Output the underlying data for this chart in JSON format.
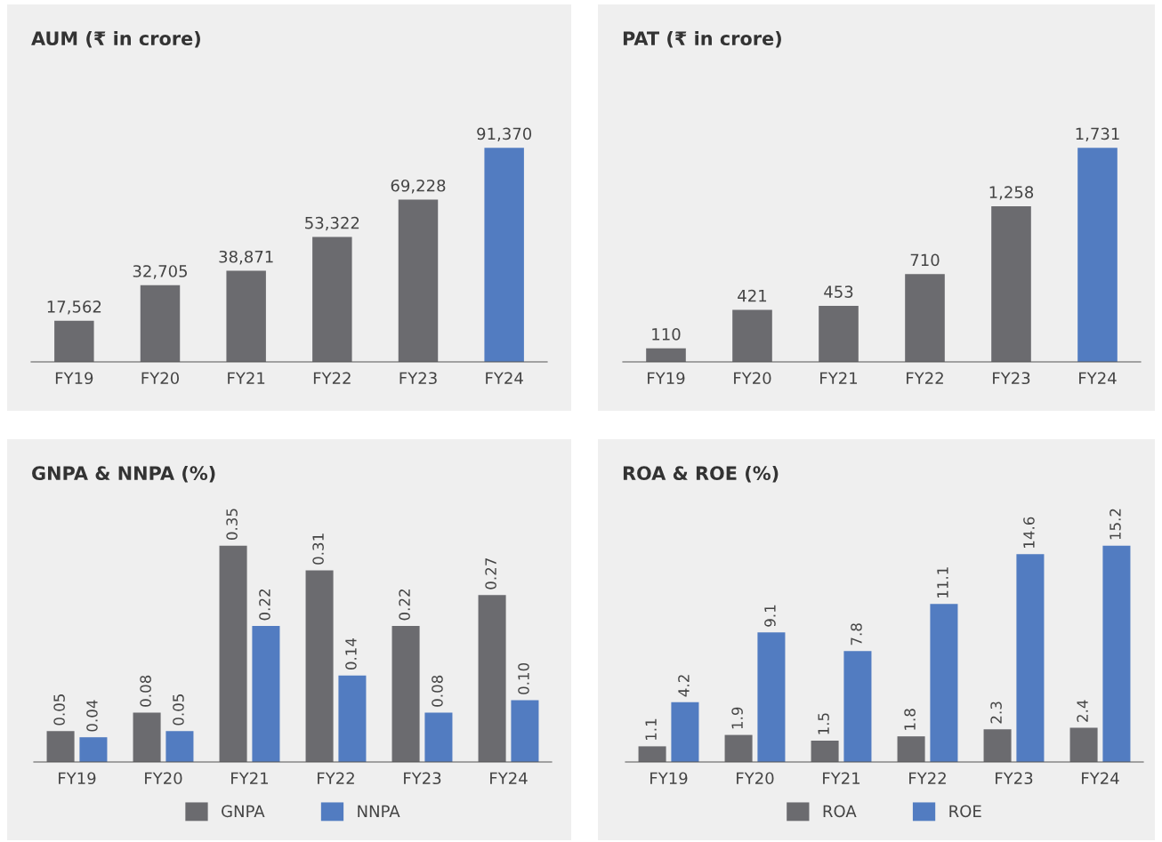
{
  "chart_data": [
    {
      "type": "bar",
      "title": "AUM (₹ in crore)",
      "categories": [
        "FY19",
        "FY20",
        "FY21",
        "FY22",
        "FY23",
        "FY24"
      ],
      "values": [
        17562,
        32705,
        38871,
        53322,
        69228,
        91370
      ],
      "value_labels": [
        "17,562",
        "32,705",
        "38,871",
        "53,322",
        "69,228",
        "91,370"
      ],
      "colors": [
        "#6b6b6f",
        "#6b6b6f",
        "#6b6b6f",
        "#6b6b6f",
        "#6b6b6f",
        "#527cc1"
      ],
      "tick_labels": "x",
      "legend": false
    },
    {
      "type": "bar",
      "title": "PAT (₹ in crore)",
      "categories": [
        "FY19",
        "FY20",
        "FY21",
        "FY22",
        "FY23",
        "FY24"
      ],
      "values": [
        110,
        421,
        453,
        710,
        1258,
        1731
      ],
      "value_labels": [
        "110",
        "421",
        "453",
        "710",
        "1,258",
        "1,731"
      ],
      "colors": [
        "#6b6b6f",
        "#6b6b6f",
        "#6b6b6f",
        "#6b6b6f",
        "#6b6b6f",
        "#527cc1"
      ],
      "tick_labels": "x",
      "legend": false
    },
    {
      "type": "bar",
      "title": "GNPA & NNPA (%)",
      "categories": [
        "FY19",
        "FY20",
        "FY21",
        "FY22",
        "FY23",
        "FY24"
      ],
      "series": [
        {
          "name": "GNPA",
          "color": "#6b6b6f",
          "values": [
            0.05,
            0.08,
            0.35,
            0.31,
            0.22,
            0.27
          ],
          "value_labels": [
            "0.05",
            "0.08",
            "0.35",
            "0.31",
            "0.22",
            "0.27"
          ]
        },
        {
          "name": "NNPA",
          "color": "#527cc1",
          "values": [
            0.04,
            0.05,
            0.22,
            0.14,
            0.08,
            0.1
          ],
          "value_labels": [
            "0.04",
            "0.05",
            "0.22",
            "0.14",
            "0.08",
            "0.10"
          ]
        }
      ],
      "tick_labels": "x",
      "legend": "bottom"
    },
    {
      "type": "bar",
      "title": "ROA & ROE (%)",
      "categories": [
        "FY19",
        "FY20",
        "FY21",
        "FY22",
        "FY23",
        "FY24"
      ],
      "series": [
        {
          "name": "ROA",
          "color": "#6b6b6f",
          "values": [
            1.1,
            1.9,
            1.5,
            1.8,
            2.3,
            2.4
          ],
          "value_labels": [
            "1.1",
            "1.9",
            "1.5",
            "1.8",
            "2.3",
            "2.4"
          ]
        },
        {
          "name": "ROE",
          "color": "#527cc1",
          "values": [
            4.2,
            9.1,
            7.8,
            11.1,
            14.6,
            15.2
          ],
          "value_labels": [
            "4.2",
            "9.1",
            "7.8",
            "11.1",
            "14.6",
            "15.2"
          ]
        }
      ],
      "tick_labels": "x",
      "legend": "bottom"
    }
  ]
}
